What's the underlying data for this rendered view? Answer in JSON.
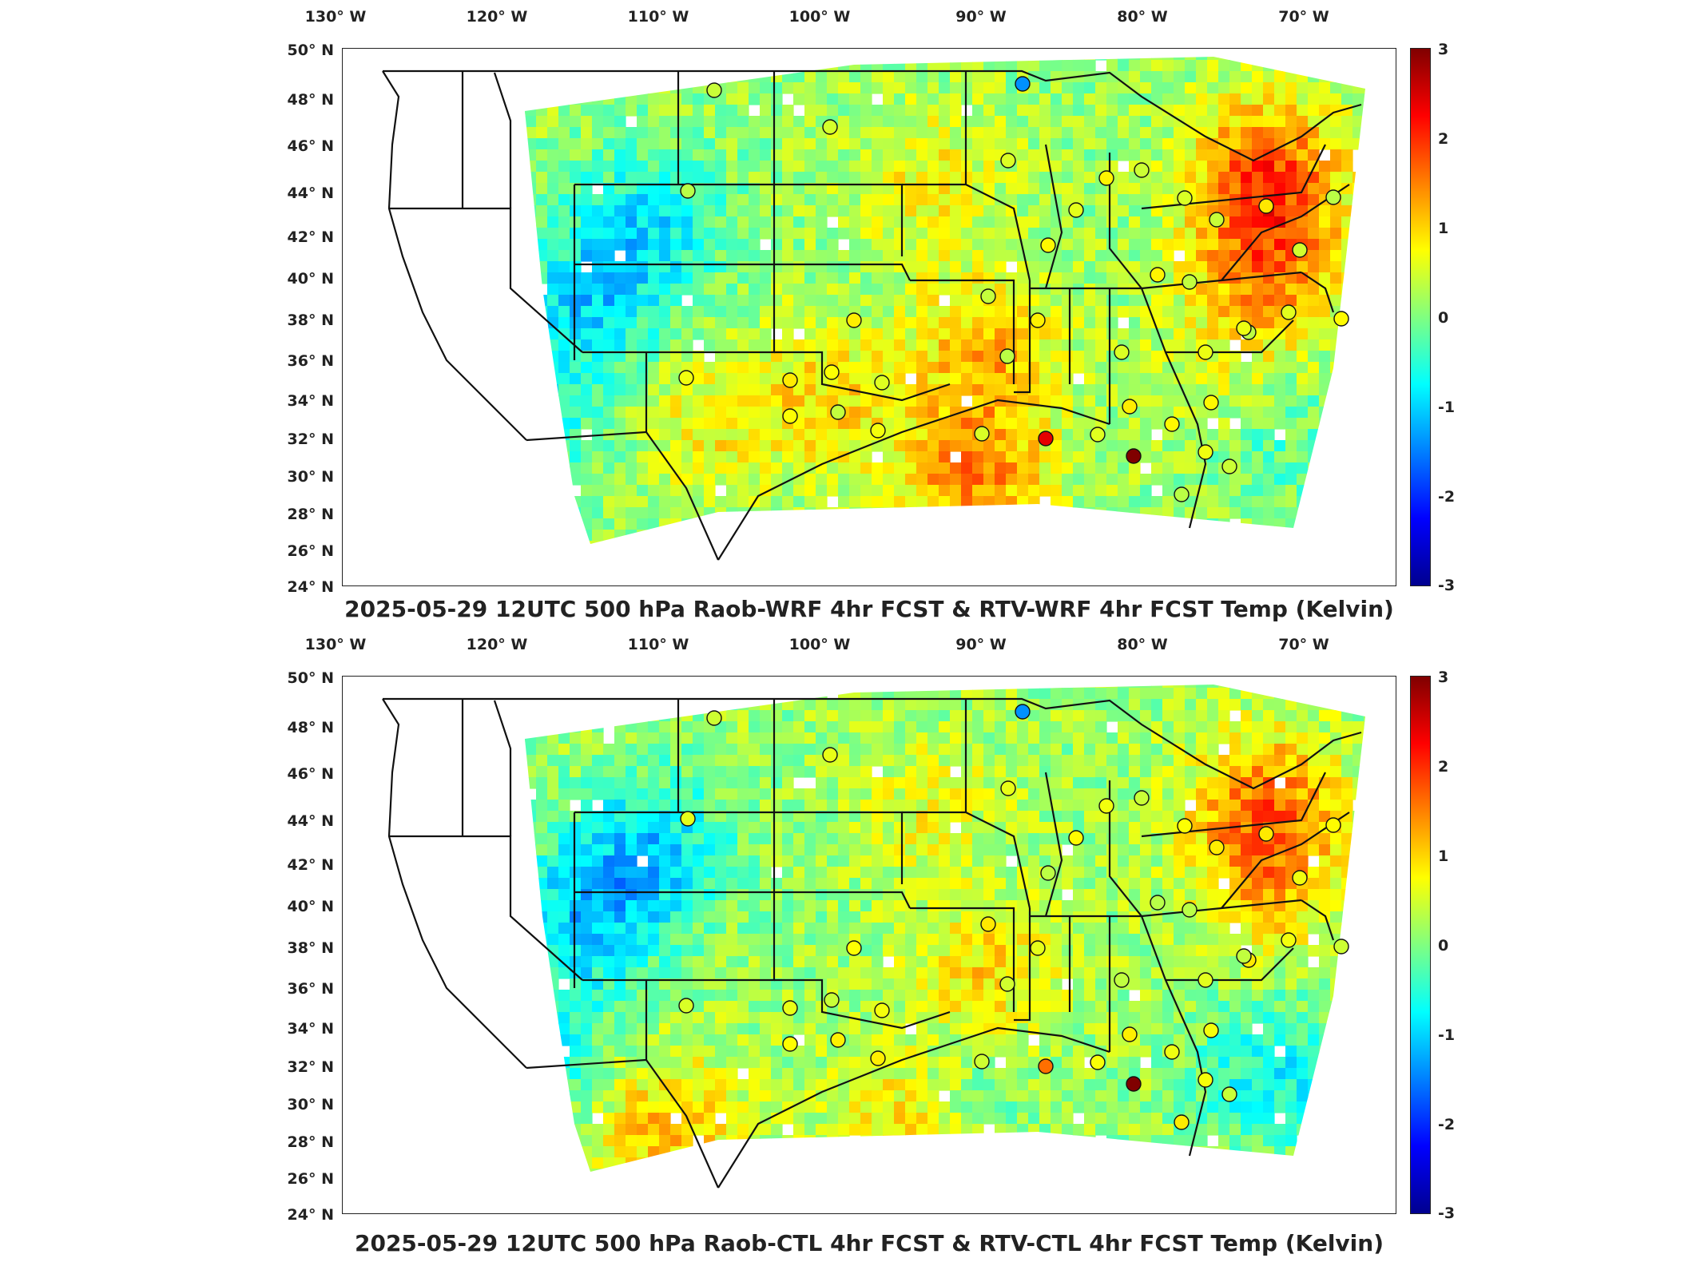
{
  "panels": [
    {
      "title": "2025-05-29 12UTC 500 hPa Raob-WRF 4hr FCST & RTV-WRF 4hr FCST Temp (Kelvin)"
    },
    {
      "title": "2025-05-29 12UTC 500 hPa Raob-CTL 4hr FCST & RTV-CTL 4hr FCST Temp (Kelvin)"
    }
  ],
  "lon_labels": [
    "130° W",
    "120° W",
    "110° W",
    "100° W",
    "90° W",
    "80° W",
    "70° W"
  ],
  "lat_labels": [
    "50° N",
    "48° N",
    "46° N",
    "44° N",
    "42° N",
    "40° N",
    "38° N",
    "36° N",
    "34° N",
    "32° N",
    "30° N",
    "28° N",
    "26° N",
    "24° N"
  ],
  "colorbar": {
    "ticks": [
      "3",
      "2",
      "1",
      "0",
      "-1",
      "-2",
      "-3"
    ],
    "min": -3,
    "max": 3,
    "colormap": "jet"
  },
  "colors": {
    "frame": "#222222",
    "state_lines": "#111111",
    "background": "#ffffff"
  }
}
